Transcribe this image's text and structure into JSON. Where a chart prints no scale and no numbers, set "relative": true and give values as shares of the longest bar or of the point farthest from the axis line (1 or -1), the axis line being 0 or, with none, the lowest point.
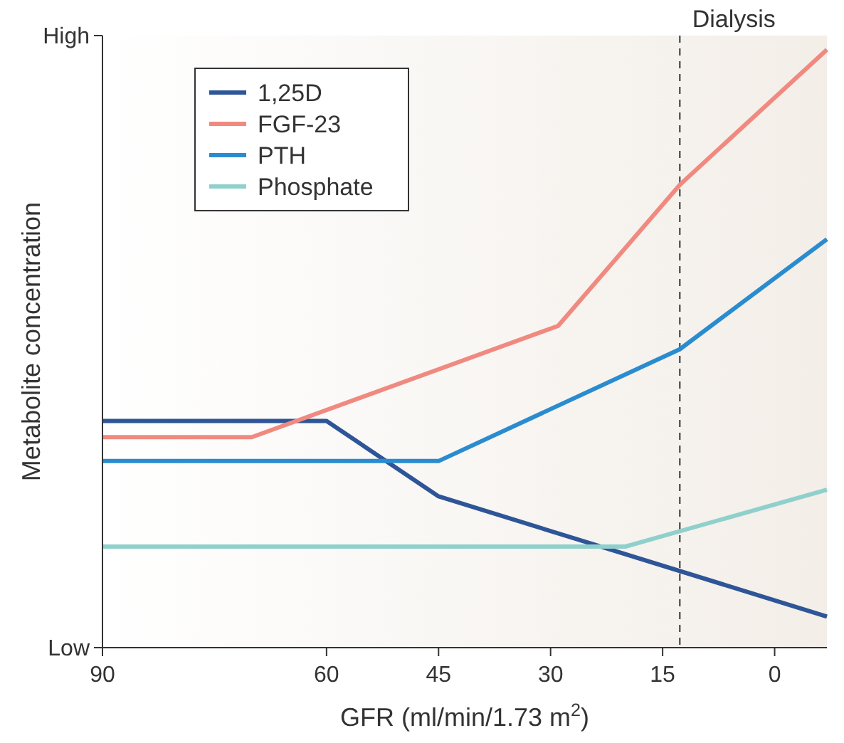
{
  "chart_data": {
    "type": "line",
    "xlabel": "GFR (ml/min/1.73 m$^{2}$)",
    "ylabel": "Metabolite concentration",
    "xlim": [
      90,
      -7
    ],
    "xticks": [
      90,
      60,
      45,
      30,
      15,
      0
    ],
    "relative": true,
    "annotations": [
      "High",
      "Low"
    ],
    "series": [
      {
        "name": "1,25D",
        "color": "#2e5597",
        "x": [
          90,
          60,
          45,
          -7
        ],
        "values": [
          0.379,
          0.379,
          0.253,
          0.052
        ]
      },
      {
        "name": "FGF-23",
        "color": "#f08a80",
        "x": [
          90,
          70,
          29,
          12.7,
          -7
        ],
        "values": [
          0.352,
          0.352,
          0.538,
          0.774,
          1
        ]
      },
      {
        "name": "PTH",
        "color": "#2a8ccf",
        "x": [
          90,
          45,
          12.7,
          -7
        ],
        "values": [
          0.312,
          0.312,
          0.499,
          0.683
        ]
      },
      {
        "name": "Phosphate",
        "color": "#8fd0cc",
        "x": [
          90,
          20,
          -7
        ],
        "values": [
          0.169,
          0.169,
          0.264
        ]
      }
    ],
    "ref_lines": [
      {
        "axis": "x",
        "value": 12.7,
        "label": "Dialysis",
        "line_style": "dashed",
        "color": "#555555"
      }
    ],
    "legend": "top left",
    "grid": false,
    "marker": "none",
    "line_style": "solid"
  }
}
